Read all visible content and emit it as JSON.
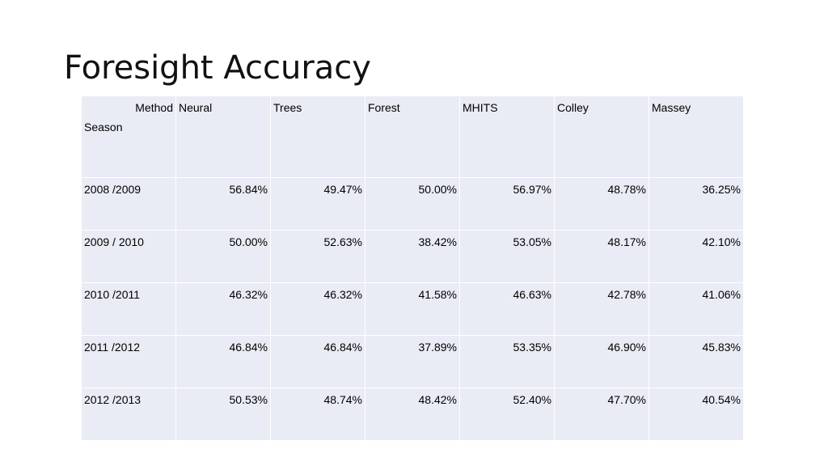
{
  "slide": {
    "title": "Foresight Accuracy"
  },
  "table": {
    "corner_top": "Method",
    "corner_bottom": "Season",
    "columns": [
      "Neural",
      "Trees",
      "Forest",
      "MHITS",
      "Colley",
      "Massey"
    ],
    "rows": [
      {
        "season": "2008 /2009",
        "values": [
          "56.84%",
          "49.47%",
          "50.00%",
          "56.97%",
          "48.78%",
          "36.25%"
        ]
      },
      {
        "season": "2009 / 2010",
        "values": [
          "50.00%",
          "52.63%",
          "38.42%",
          "53.05%",
          "48.17%",
          "42.10%"
        ]
      },
      {
        "season": "2010 /2011",
        "values": [
          "46.32%",
          "46.32%",
          "41.58%",
          "46.63%",
          "42.78%",
          "41.06%"
        ]
      },
      {
        "season": "2011 /2012",
        "values": [
          "46.84%",
          "46.84%",
          "37.89%",
          "53.35%",
          "46.90%",
          "45.83%"
        ]
      },
      {
        "season": "2012 /2013",
        "values": [
          "50.53%",
          "48.74%",
          "48.42%",
          "52.40%",
          "47.70%",
          "40.54%"
        ]
      }
    ]
  },
  "colors": {
    "cell_fill": "#e9ecf5",
    "grid_line": "#ffffff",
    "title_text": "#111111"
  }
}
